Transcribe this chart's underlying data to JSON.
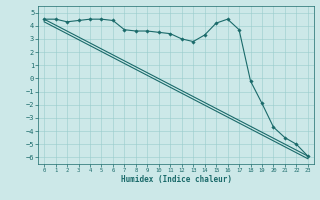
{
  "xlabel": "Humidex (Indice chaleur)",
  "bg_color": "#cce8e8",
  "grid_color": "#99cccc",
  "line_color": "#1a6a6a",
  "xlim": [
    -0.5,
    23.5
  ],
  "ylim": [
    -6.5,
    5.5
  ],
  "xticks": [
    0,
    1,
    2,
    3,
    4,
    5,
    6,
    7,
    8,
    9,
    10,
    11,
    12,
    13,
    14,
    15,
    16,
    17,
    18,
    19,
    20,
    21,
    22,
    23
  ],
  "yticks": [
    -6,
    -5,
    -4,
    -3,
    -2,
    -1,
    0,
    1,
    2,
    3,
    4,
    5
  ],
  "line1_x": [
    0,
    1,
    2,
    3,
    4,
    5,
    6,
    7,
    8,
    9,
    10,
    11,
    12,
    13,
    14,
    15,
    16,
    17,
    18,
    19,
    20,
    21,
    22,
    23
  ],
  "line1_y": [
    4.5,
    4.5,
    4.3,
    4.4,
    4.5,
    4.5,
    4.4,
    3.7,
    3.6,
    3.6,
    3.5,
    3.4,
    3.0,
    2.8,
    3.3,
    4.2,
    4.5,
    3.7,
    -0.2,
    -1.9,
    -3.7,
    -4.5,
    -5.0,
    -5.9
  ],
  "line2_x": [
    0,
    23
  ],
  "line2_y": [
    4.5,
    -5.9
  ],
  "line3_x": [
    0,
    23
  ],
  "line3_y": [
    4.3,
    -6.1
  ]
}
